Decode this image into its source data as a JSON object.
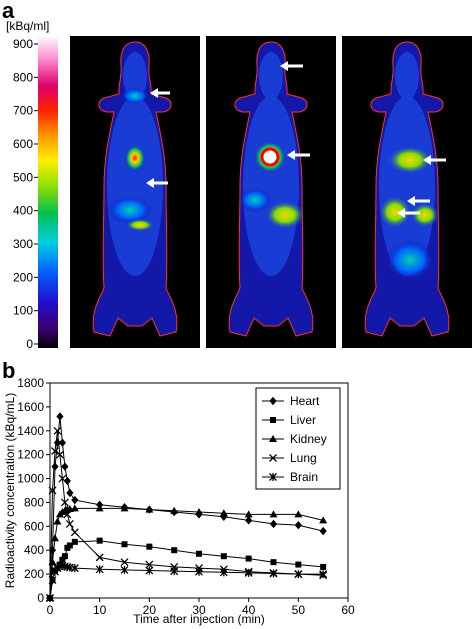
{
  "panel_a": {
    "letter": "a",
    "unit_label": "[kBq/ml]",
    "scale_ticks": [
      900,
      800,
      700,
      600,
      500,
      400,
      300,
      200,
      100,
      0
    ]
  },
  "panel_b": {
    "letter": "b"
  },
  "chart_data": {
    "type": "line",
    "title": "",
    "xlabel": "Time after injection (min)",
    "ylabel": "Radioactivity concentration (kBq/mL)",
    "xlim": [
      0,
      60
    ],
    "ylim": [
      0,
      1800
    ],
    "xticks": [
      0,
      10,
      20,
      30,
      40,
      50,
      60
    ],
    "yticks": [
      0,
      200,
      400,
      600,
      800,
      1000,
      1200,
      1400,
      1600,
      1800
    ],
    "grid": false,
    "legend_position": "top-right",
    "series": [
      {
        "name": "Heart",
        "marker": "diamond",
        "x": [
          0,
          0.5,
          1,
          1.5,
          2,
          2.5,
          3,
          3.5,
          4,
          5,
          10,
          15,
          20,
          25,
          30,
          35,
          40,
          45,
          50,
          55
        ],
        "y": [
          0,
          400,
          1100,
          1300,
          1520,
          1300,
          1100,
          980,
          880,
          820,
          780,
          760,
          740,
          720,
          700,
          680,
          650,
          620,
          610,
          560
        ]
      },
      {
        "name": "Liver",
        "marker": "square",
        "x": [
          0,
          0.5,
          1,
          1.5,
          2,
          2.5,
          3,
          3.5,
          4,
          5,
          10,
          15,
          20,
          25,
          30,
          35,
          40,
          45,
          50,
          55
        ],
        "y": [
          0,
          150,
          230,
          250,
          280,
          320,
          350,
          420,
          440,
          470,
          480,
          450,
          430,
          400,
          370,
          350,
          330,
          300,
          280,
          260
        ]
      },
      {
        "name": "Kidney",
        "marker": "triangle",
        "x": [
          0,
          0.5,
          1,
          1.5,
          2,
          2.5,
          3,
          3.5,
          4,
          5,
          10,
          15,
          20,
          25,
          30,
          35,
          40,
          45,
          50,
          55
        ],
        "y": [
          0,
          300,
          500,
          640,
          700,
          720,
          730,
          740,
          745,
          750,
          750,
          750,
          740,
          730,
          720,
          710,
          700,
          700,
          700,
          650
        ]
      },
      {
        "name": "Lung",
        "marker": "x",
        "x": [
          0,
          0.5,
          1,
          1.5,
          2,
          2.5,
          3,
          3.5,
          4,
          5,
          10,
          15,
          20,
          25,
          30,
          35,
          40,
          45,
          50,
          55
        ],
        "y": [
          0,
          900,
          1230,
          1400,
          1200,
          1000,
          800,
          700,
          620,
          550,
          340,
          300,
          280,
          260,
          250,
          240,
          220,
          210,
          200,
          190
        ]
      },
      {
        "name": "Brain",
        "marker": "star",
        "x": [
          0,
          0.5,
          1,
          1.5,
          2,
          2.5,
          3,
          3.5,
          4,
          5,
          10,
          15,
          20,
          25,
          30,
          35,
          40,
          45,
          50,
          55
        ],
        "y": [
          0,
          150,
          220,
          250,
          265,
          270,
          265,
          260,
          255,
          250,
          240,
          235,
          230,
          225,
          220,
          215,
          210,
          205,
          200,
          200
        ]
      }
    ]
  }
}
